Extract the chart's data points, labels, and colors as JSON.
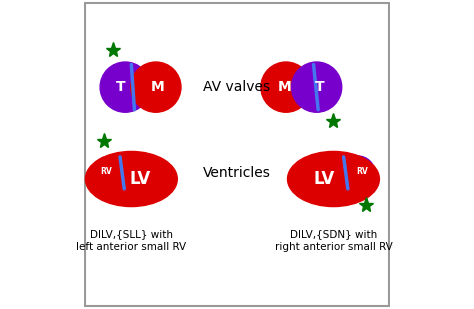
{
  "bg_color": "#ffffff",
  "border_color": "#999999",
  "red": "#dd0000",
  "purple": "#7700cc",
  "blue_line": "#4477ee",
  "green_star": "#007700",
  "text_color": "#000000",
  "label_av": "AV valves",
  "label_vent": "Ventricles",
  "label_left": "DILV,{SLL} with\nleft anterior small RV",
  "label_right": "DILV,{SDN} with\nright anterior small RV",
  "label_T": "T",
  "label_M": "M",
  "label_LV": "LV",
  "label_RV": "RV",
  "figsize": [
    4.74,
    3.09
  ],
  "dpi": 100
}
